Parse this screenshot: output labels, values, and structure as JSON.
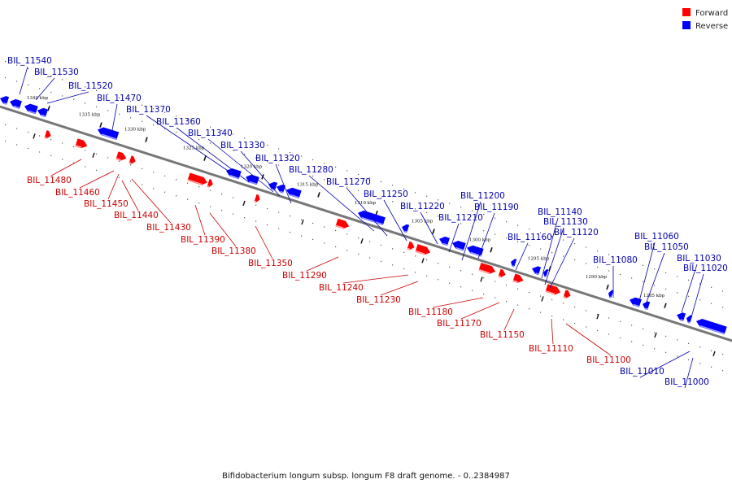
{
  "title": "Bifidobacterium longum subsp. longum F8 draft genome. - 0..2384987",
  "legend": [
    {
      "label": "Forward",
      "color": "#ff0000"
    },
    {
      "label": "Reverse",
      "color": "#0000ff"
    }
  ],
  "ticks": [
    "1340 kbp",
    "1335 kbp",
    "1330 kbp",
    "1325 kbp",
    "1320 kbp",
    "1315 kbp",
    "1310 kbp",
    "1305 kbp",
    "1300 kbp",
    "1295 kbp",
    "1290 kbp",
    "1285 kbp"
  ],
  "reverse_labels": [
    "BIL_11540",
    "BIL_11530",
    "BIL_11520",
    "BIL_11470",
    "BIL_11370",
    "BIL_11360",
    "BIL_11340",
    "BIL_11330",
    "BIL_11320",
    "BIL_11280",
    "BIL_11270",
    "BIL_11250",
    "BIL_11220",
    "BIL_11210",
    "BIL_11200",
    "BIL_11190",
    "BIL_11160",
    "BIL_11140",
    "BIL_11130",
    "BIL_11120",
    "BIL_11080",
    "BIL_11060",
    "BIL_11050",
    "BIL_11030",
    "BIL_11020",
    "BIL_11010",
    "BIL_11000"
  ],
  "forward_labels": [
    "BIL_11480",
    "BIL_11460",
    "BIL_11450",
    "BIL_11440",
    "BIL_11430",
    "BIL_11390",
    "BIL_11380",
    "BIL_11350",
    "BIL_11290",
    "BIL_11240",
    "BIL_11230",
    "BIL_11180",
    "BIL_11170",
    "BIL_11150",
    "BIL_11110",
    "BIL_11100"
  ]
}
